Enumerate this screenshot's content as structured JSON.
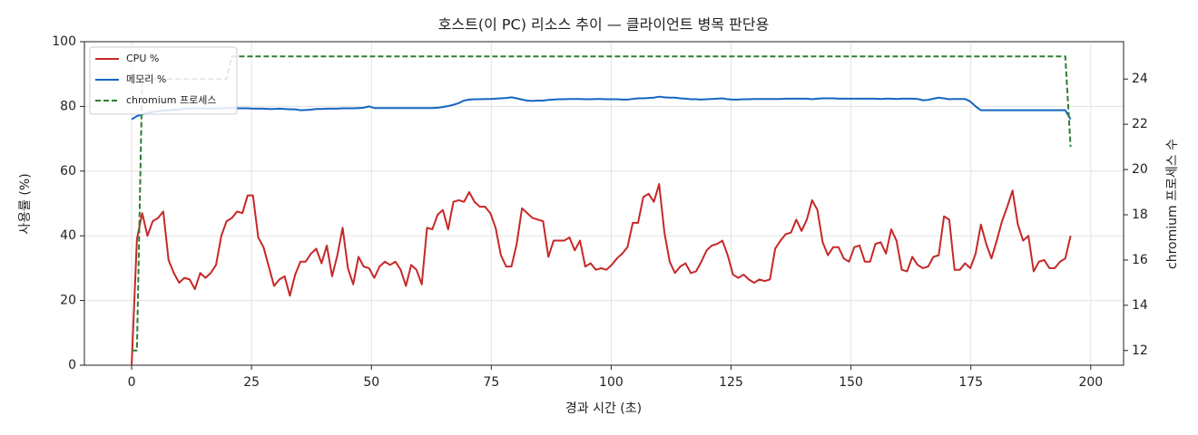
{
  "chart_data": {
    "type": "line",
    "title": "호스트(이 PC) 리소스 추이 — 클라이언트 병목 판단용",
    "xlabel": "경과 시간 (초)",
    "ylabel": "사용률 (%)",
    "y2label": "chromium 프로세스 수",
    "xlim": [
      -9.85,
      206.85
    ],
    "xticks": [
      0,
      25,
      50,
      75,
      100,
      125,
      150,
      175,
      200
    ],
    "ylim": [
      0,
      100
    ],
    "yticks": [
      0,
      20,
      40,
      60,
      80,
      100
    ],
    "y2lim": [
      11.35,
      25.65
    ],
    "y2ticks": [
      12,
      14,
      16,
      18,
      20,
      22,
      24
    ],
    "grid": true,
    "legend": "upper left",
    "x": [
      0,
      1.1,
      2.2,
      3.3,
      4.4,
      5.5,
      6.6,
      7.7,
      8.8,
      9.9,
      11,
      12.1,
      13.2,
      14.3,
      15.4,
      16.5,
      17.6,
      18.7,
      19.8,
      20.9,
      22,
      23.1,
      24.2,
      25.3,
      26.4,
      27.5,
      28.6,
      29.7,
      30.8,
      31.9,
      33,
      34.1,
      35.2,
      36.3,
      37.4,
      38.5,
      39.6,
      40.7,
      41.8,
      42.9,
      44,
      45.1,
      46.2,
      47.3,
      48.4,
      49.5,
      50.6,
      51.7,
      52.8,
      53.9,
      55,
      56.1,
      57.2,
      58.3,
      59.4,
      60.5,
      61.6,
      62.7,
      63.8,
      64.9,
      66,
      67.1,
      68.2,
      69.3,
      70.4,
      71.5,
      72.6,
      73.7,
      74.8,
      75.9,
      77,
      78.1,
      79.2,
      80.3,
      81.4,
      82.5,
      83.6,
      84.7,
      85.8,
      86.9,
      88,
      89.1,
      90.2,
      91.3,
      92.4,
      93.5,
      94.6,
      95.7,
      96.8,
      97.9,
      99,
      100.1,
      101.2,
      102.3,
      103.4,
      104.5,
      105.6,
      106.7,
      107.8,
      108.9,
      110,
      111.1,
      112.2,
      113.3,
      114.4,
      115.5,
      116.6,
      117.7,
      118.8,
      119.9,
      121,
      122.1,
      123.2,
      124.3,
      125.4,
      126.5,
      127.6,
      128.7,
      129.8,
      130.9,
      132,
      133.1,
      134.2,
      135.3,
      136.4,
      137.5,
      138.6,
      139.7,
      140.8,
      141.9,
      143,
      144.1,
      145.2,
      146.3,
      147.4,
      148.5,
      149.6,
      150.7,
      151.8,
      152.9,
      154,
      155.1,
      156.2,
      157.3,
      158.4,
      159.5,
      160.6,
      161.7,
      162.8,
      163.9,
      165,
      166.1,
      167.2,
      168.3,
      169.4,
      170.5,
      171.6,
      172.7,
      173.8,
      174.9,
      176,
      177.1,
      178.2,
      179.3,
      180.4,
      181.5,
      182.6,
      183.7,
      184.8,
      185.9,
      187,
      188.1,
      189.2,
      190.3,
      191.4,
      192.5,
      193.6,
      194.7,
      195.8
    ],
    "series": [
      {
        "name": "CPU %",
        "color": "#c62828",
        "linestyle": "solid",
        "values": [
          0,
          39,
          47,
          40,
          44.5,
          45.5,
          47.5,
          32.5,
          28.5,
          25.5,
          27,
          26.5,
          23.5,
          28.5,
          27,
          28.5,
          31,
          40,
          44.5,
          45.5,
          47.5,
          47,
          52.5,
          52.5,
          39.5,
          36.5,
          30.5,
          24.5,
          26.5,
          27.5,
          21.5,
          28,
          32,
          32,
          34.5,
          36,
          31.5,
          37,
          27.5,
          34,
          42.5,
          30,
          25,
          33.5,
          30.5,
          30,
          27,
          30.5,
          32,
          31,
          32,
          29.5,
          24.5,
          31,
          29.5,
          25,
          42.5,
          42,
          46.5,
          48,
          42,
          50.5,
          51,
          50.5,
          53.5,
          50.5,
          49,
          49,
          47,
          42.5,
          34,
          30.5,
          30.5,
          37.5,
          48.5,
          47,
          45.5,
          45,
          44.5,
          33.5,
          38.5,
          38.5,
          38.5,
          39.5,
          35.5,
          38.5,
          30.5,
          31.5,
          29.5,
          30,
          29.5,
          31,
          33,
          34.5,
          36.5,
          44,
          44,
          52,
          53,
          50.5,
          56,
          41,
          32,
          28.5,
          30.5,
          31.5,
          28.5,
          29,
          32,
          35.5,
          37,
          37.5,
          38.5,
          34,
          28,
          27,
          28,
          26.5,
          25.5,
          26.5,
          26,
          26.5,
          36,
          38.5,
          40.5,
          41,
          45,
          41.5,
          45,
          51,
          48,
          38,
          34,
          36.5,
          36.5,
          33,
          32,
          36.5,
          37,
          32,
          32,
          37.5,
          38,
          34.5,
          42,
          38.5,
          29.5,
          29,
          33.5,
          31,
          30,
          30.5,
          33.5,
          34,
          46,
          45,
          29.5,
          29.5,
          31.5,
          30,
          34.5,
          43.5,
          37.5,
          33,
          38.5,
          44.5,
          49,
          54,
          43.5,
          38.5,
          40,
          29,
          32,
          32.5,
          30,
          30,
          32,
          33,
          40
        ]
      },
      {
        "name": "메모리 %",
        "color": "#1565c0",
        "linestyle": "solid",
        "values": [
          76,
          77,
          77.5,
          78,
          78.3,
          78.5,
          78.7,
          78.8,
          79,
          79,
          79.3,
          79.3,
          79.4,
          79.4,
          79.3,
          79.3,
          79.3,
          79.4,
          79.5,
          79.5,
          79.4,
          79.4,
          79.4,
          79.3,
          79.3,
          79.3,
          79.2,
          79.2,
          79.3,
          79.2,
          79.1,
          79.1,
          78.8,
          78.9,
          79,
          79.2,
          79.2,
          79.3,
          79.3,
          79.3,
          79.4,
          79.4,
          79.4,
          79.5,
          79.6,
          80,
          79.5,
          79.5,
          79.5,
          79.5,
          79.5,
          79.5,
          79.5,
          79.5,
          79.5,
          79.5,
          79.5,
          79.5,
          79.6,
          79.8,
          80.1,
          80.5,
          81,
          81.8,
          82.1,
          82.2,
          82.2,
          82.3,
          82.3,
          82.4,
          82.5,
          82.6,
          82.8,
          82.5,
          82.1,
          81.8,
          81.7,
          81.8,
          81.8,
          82,
          82.1,
          82.2,
          82.2,
          82.3,
          82.3,
          82.3,
          82.2,
          82.2,
          82.3,
          82.3,
          82.2,
          82.2,
          82.2,
          82.1,
          82.1,
          82.3,
          82.5,
          82.5,
          82.6,
          82.7,
          83,
          82.8,
          82.7,
          82.7,
          82.5,
          82.4,
          82.2,
          82.2,
          82.1,
          82.2,
          82.3,
          82.4,
          82.5,
          82.2,
          82.1,
          82.1,
          82.2,
          82.2,
          82.3,
          82.3,
          82.3,
          82.3,
          82.3,
          82.3,
          82.4,
          82.4,
          82.4,
          82.4,
          82.4,
          82.2,
          82.4,
          82.5,
          82.5,
          82.5,
          82.4,
          82.4,
          82.4,
          82.4,
          82.4,
          82.4,
          82.4,
          82.4,
          82.3,
          82.4,
          82.4,
          82.3,
          82.4,
          82.4,
          82.4,
          82.3,
          81.9,
          82,
          82.4,
          82.7,
          82.5,
          82.2,
          82.3,
          82.3,
          82.3,
          81.5,
          80,
          78.8,
          78.8,
          78.8,
          78.8,
          78.8,
          78.8,
          78.8,
          78.8,
          78.8,
          78.8,
          78.8,
          78.8,
          78.8,
          78.8,
          78.8,
          78.8,
          78.8,
          76
        ]
      },
      {
        "name": "chromium 프로세스",
        "color": "#2e7d32",
        "linestyle": "dashed",
        "axis": "y2",
        "values": [
          12,
          12,
          24,
          24,
          24,
          24,
          24,
          24,
          24,
          24,
          24,
          24,
          24,
          24,
          24,
          24,
          24,
          24,
          24,
          25,
          25,
          25,
          25,
          25,
          25,
          25,
          25,
          25,
          25,
          25,
          25,
          25,
          25,
          25,
          25,
          25,
          25,
          25,
          25,
          25,
          25,
          25,
          25,
          25,
          25,
          25,
          25,
          25,
          25,
          25,
          25,
          25,
          25,
          25,
          25,
          25,
          25,
          25,
          25,
          25,
          25,
          25,
          25,
          25,
          25,
          25,
          25,
          25,
          25,
          25,
          25,
          25,
          25,
          25,
          25,
          25,
          25,
          25,
          25,
          25,
          25,
          25,
          25,
          25,
          25,
          25,
          25,
          25,
          25,
          25,
          25,
          25,
          25,
          25,
          25,
          25,
          25,
          25,
          25,
          25,
          25,
          25,
          25,
          25,
          25,
          25,
          25,
          25,
          25,
          25,
          25,
          25,
          25,
          25,
          25,
          25,
          25,
          25,
          25,
          25,
          25,
          25,
          25,
          25,
          25,
          25,
          25,
          25,
          25,
          25,
          25,
          25,
          25,
          25,
          25,
          25,
          25,
          25,
          25,
          25,
          25,
          25,
          25,
          25,
          25,
          25,
          25,
          25,
          25,
          25,
          25,
          25,
          25,
          25,
          25,
          25,
          25,
          25,
          25,
          25,
          25,
          25,
          25,
          25,
          25,
          25,
          25,
          25,
          25,
          25,
          25,
          25,
          25,
          25,
          25,
          25,
          25,
          25,
          21
        ]
      }
    ]
  }
}
